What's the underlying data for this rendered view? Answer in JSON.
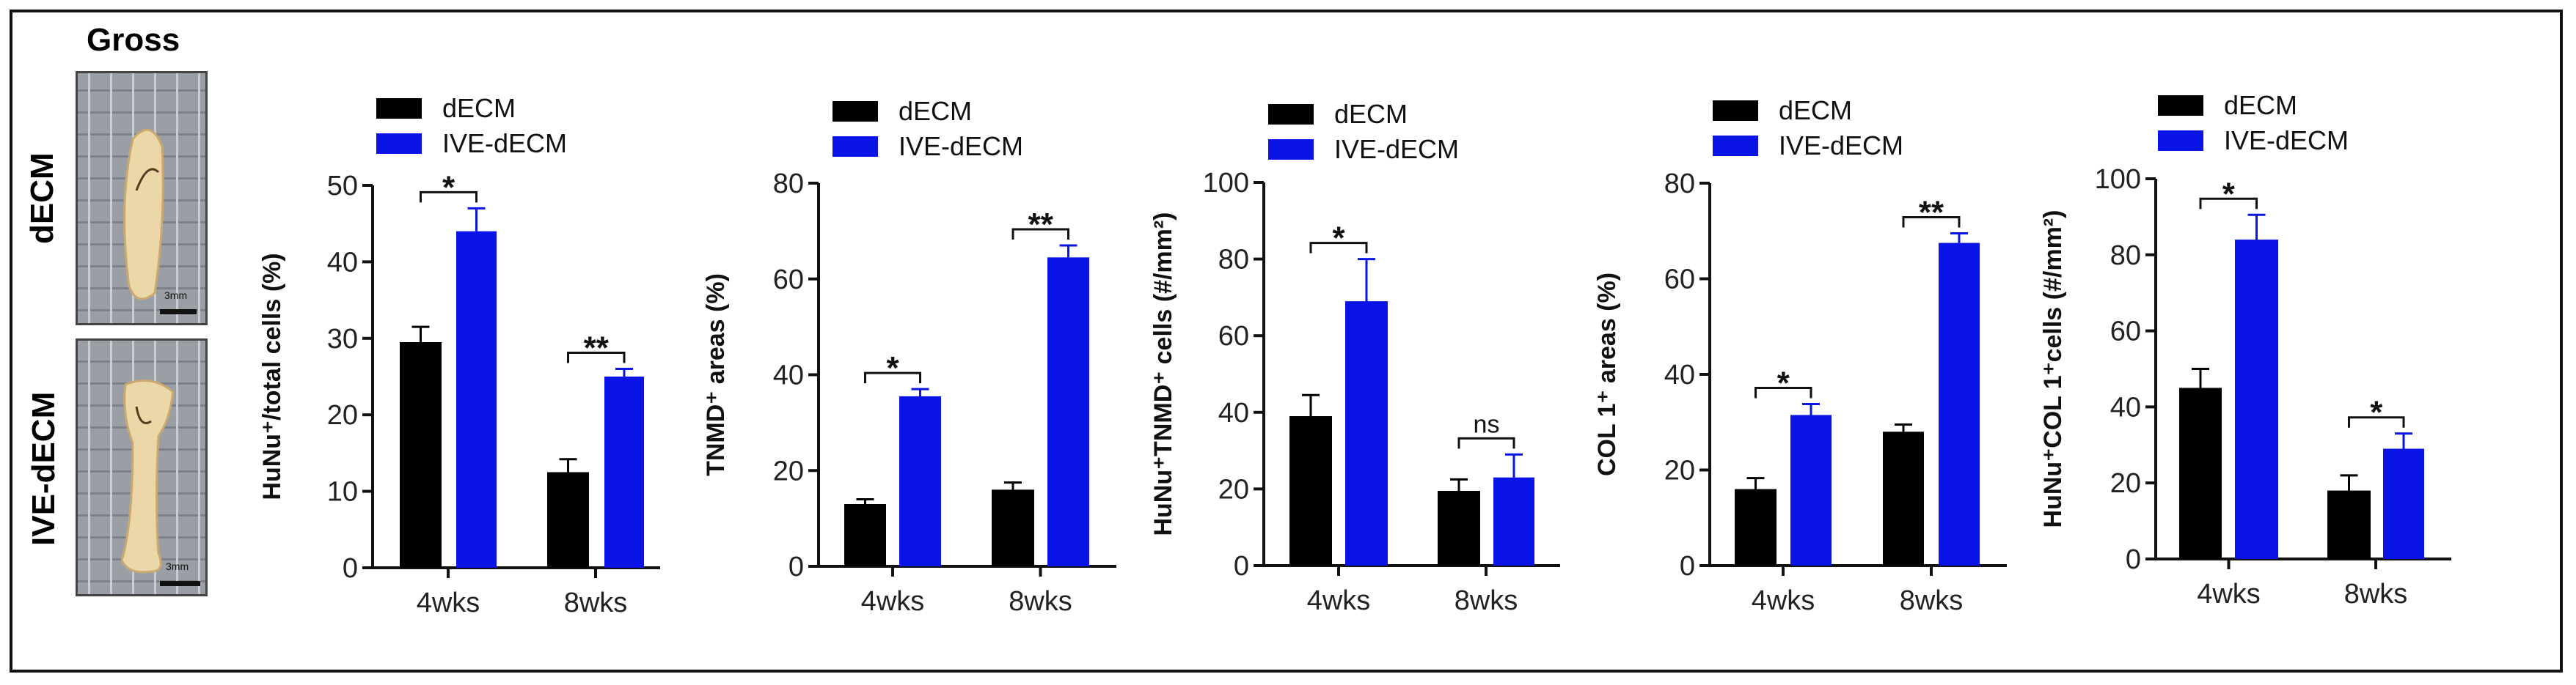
{
  "gross": {
    "title": "Gross",
    "rows": [
      {
        "label": "dECM",
        "scale_label": "3mm"
      },
      {
        "label": "IVE-dECM",
        "scale_label": "3mm"
      }
    ]
  },
  "colors": {
    "dECM": "#000000",
    "IVE-dECM": "#0a14e6"
  },
  "chart_data": [
    {
      "type": "bar",
      "ylabel": "HuNu⁺/total cells (%)",
      "categories": [
        "4wks",
        "8wks"
      ],
      "ylim": [
        0,
        50
      ],
      "yticks": [
        "0",
        "10",
        "20",
        "30",
        "40",
        "50"
      ],
      "legend": [
        "dECM",
        "IVE-dECM"
      ],
      "legend_position": "top-left",
      "series": [
        {
          "name": "dECM",
          "values": [
            29.5,
            12.5
          ],
          "errors": [
            2,
            1.7
          ]
        },
        {
          "name": "IVE-dECM",
          "values": [
            44,
            25
          ],
          "errors": [
            3,
            1
          ]
        }
      ],
      "significance": [
        "*",
        "**"
      ]
    },
    {
      "type": "bar",
      "ylabel": "TNMD⁺ areas (%)",
      "categories": [
        "4wks",
        "8wks"
      ],
      "ylim": [
        0,
        80
      ],
      "yticks": [
        "0",
        "20",
        "40",
        "60",
        "80"
      ],
      "legend": [
        "dECM",
        "IVE-dECM"
      ],
      "legend_position": "top-left",
      "series": [
        {
          "name": "dECM",
          "values": [
            13,
            16
          ],
          "errors": [
            1,
            1.5
          ]
        },
        {
          "name": "IVE-dECM",
          "values": [
            35.5,
            64.5
          ],
          "errors": [
            1.5,
            2.5
          ]
        }
      ],
      "significance": [
        "*",
        "**"
      ]
    },
    {
      "type": "bar",
      "ylabel": "HuNu⁺TNMD⁺ cells (#/mm²)",
      "categories": [
        "4wks",
        "8wks"
      ],
      "ylim": [
        0,
        100
      ],
      "yticks": [
        "0",
        "20",
        "40",
        "60",
        "80",
        "100"
      ],
      "legend": [
        "dECM",
        "IVE-dECM"
      ],
      "legend_position": "top-left",
      "series": [
        {
          "name": "dECM",
          "values": [
            39,
            19.5
          ],
          "errors": [
            5.5,
            3
          ]
        },
        {
          "name": "IVE-dECM",
          "values": [
            69,
            23
          ],
          "errors": [
            11,
            6
          ]
        }
      ],
      "significance": [
        "*",
        "ns"
      ]
    },
    {
      "type": "bar",
      "ylabel": "COL 1⁺ areas (%)",
      "categories": [
        "4wks",
        "8wks"
      ],
      "ylim": [
        0,
        80
      ],
      "yticks": [
        "0",
        "20",
        "40",
        "60",
        "80"
      ],
      "legend": [
        "dECM",
        "IVE-dECM"
      ],
      "legend_position": "top-left",
      "series": [
        {
          "name": "dECM",
          "values": [
            16,
            28
          ],
          "errors": [
            2.3,
            1.5
          ]
        },
        {
          "name": "IVE-dECM",
          "values": [
            31.5,
            67.5
          ],
          "errors": [
            2.3,
            2
          ]
        }
      ],
      "significance": [
        "*",
        "**"
      ]
    },
    {
      "type": "bar",
      "ylabel": "HuNu⁺COL 1⁺cells (#/mm²)",
      "categories": [
        "4wks",
        "8wks"
      ],
      "ylim": [
        0,
        100
      ],
      "yticks": [
        "0",
        "20",
        "40",
        "60",
        "80",
        "100"
      ],
      "legend": [
        "dECM",
        "IVE-dECM"
      ],
      "legend_position": "top-left",
      "series": [
        {
          "name": "dECM",
          "values": [
            45,
            18
          ],
          "errors": [
            5,
            4
          ]
        },
        {
          "name": "IVE-dECM",
          "values": [
            84,
            29
          ],
          "errors": [
            6.5,
            4
          ]
        }
      ],
      "significance": [
        "*",
        "*"
      ]
    }
  ]
}
